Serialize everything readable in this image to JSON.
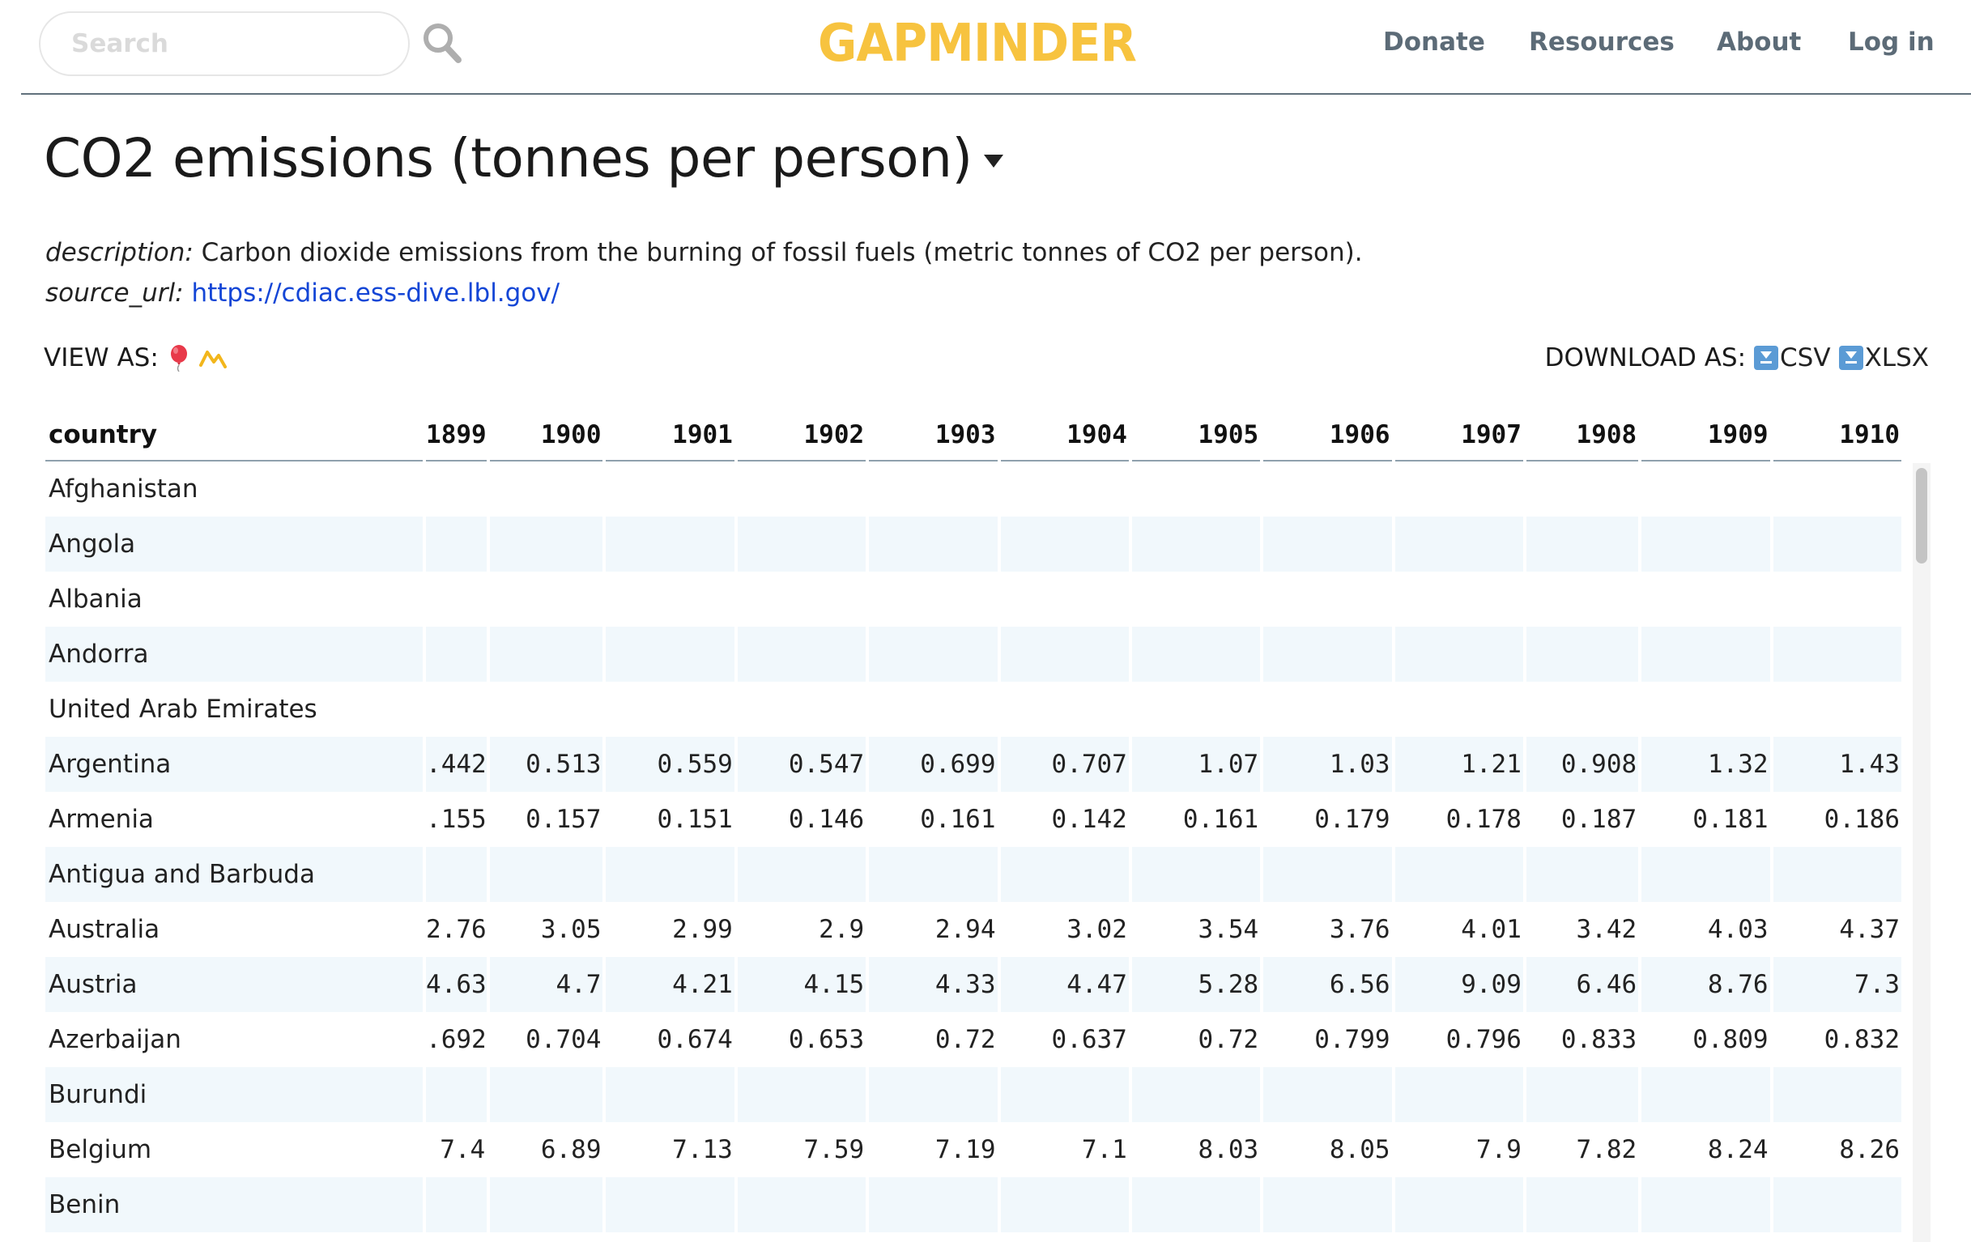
{
  "header": {
    "search_placeholder": "Search",
    "logo": "GAPMINDER",
    "nav": [
      "Donate",
      "Resources",
      "About",
      "Log in"
    ]
  },
  "dataset": {
    "title": "CO2 emissions (tonnes per person)",
    "description_label": "description:",
    "description": "Carbon dioxide emissions from the burning of fossil fuels (metric tonnes of CO2 per person).",
    "source_label": "source_url:",
    "source_url": "https://cdiac.ess-dive.lbl.gov/"
  },
  "view_as": {
    "label": "VIEW AS:",
    "icons": [
      "balloon-icon",
      "line-chart-icon"
    ]
  },
  "download_as": {
    "label": "DOWNLOAD AS:",
    "formats": [
      "CSV",
      "XLSX"
    ]
  },
  "colors": {
    "logo": "#f7c33f",
    "nav": "#5c6b77",
    "link": "#1446d6",
    "row_alt": "#f1f8fc"
  },
  "table": {
    "country_header": "country",
    "years": [
      "1899",
      "1900",
      "1901",
      "1902",
      "1903",
      "1904",
      "1905",
      "1906",
      "1907",
      "1908",
      "1909",
      "1910"
    ],
    "rows": [
      {
        "country": "Afghanistan",
        "values": [
          "",
          "",
          "",
          "",
          "",
          "",
          "",
          "",
          "",
          "",
          "",
          ""
        ]
      },
      {
        "country": "Angola",
        "values": [
          "",
          "",
          "",
          "",
          "",
          "",
          "",
          "",
          "",
          "",
          "",
          ""
        ]
      },
      {
        "country": "Albania",
        "values": [
          "",
          "",
          "",
          "",
          "",
          "",
          "",
          "",
          "",
          "",
          "",
          ""
        ]
      },
      {
        "country": "Andorra",
        "values": [
          "",
          "",
          "",
          "",
          "",
          "",
          "",
          "",
          "",
          "",
          "",
          ""
        ]
      },
      {
        "country": "United Arab Emirates",
        "values": [
          "",
          "",
          "",
          "",
          "",
          "",
          "",
          "",
          "",
          "",
          "",
          ""
        ]
      },
      {
        "country": "Argentina",
        "values": [
          ".442",
          "0.513",
          "0.559",
          "0.547",
          "0.699",
          "0.707",
          "1.07",
          "1.03",
          "1.21",
          "0.908",
          "1.32",
          "1.43"
        ]
      },
      {
        "country": "Armenia",
        "values": [
          ".155",
          "0.157",
          "0.151",
          "0.146",
          "0.161",
          "0.142",
          "0.161",
          "0.179",
          "0.178",
          "0.187",
          "0.181",
          "0.186"
        ]
      },
      {
        "country": "Antigua and Barbuda",
        "values": [
          "",
          "",
          "",
          "",
          "",
          "",
          "",
          "",
          "",
          "",
          "",
          ""
        ]
      },
      {
        "country": "Australia",
        "values": [
          "2.76",
          "3.05",
          "2.99",
          "2.9",
          "2.94",
          "3.02",
          "3.54",
          "3.76",
          "4.01",
          "3.42",
          "4.03",
          "4.37"
        ]
      },
      {
        "country": "Austria",
        "values": [
          "4.63",
          "4.7",
          "4.21",
          "4.15",
          "4.33",
          "4.47",
          "5.28",
          "6.56",
          "9.09",
          "6.46",
          "8.76",
          "7.3"
        ]
      },
      {
        "country": "Azerbaijan",
        "values": [
          ".692",
          "0.704",
          "0.674",
          "0.653",
          "0.72",
          "0.637",
          "0.72",
          "0.799",
          "0.796",
          "0.833",
          "0.809",
          "0.832"
        ]
      },
      {
        "country": "Burundi",
        "values": [
          "",
          "",
          "",
          "",
          "",
          "",
          "",
          "",
          "",
          "",
          "",
          ""
        ]
      },
      {
        "country": "Belgium",
        "values": [
          "7.4",
          "6.89",
          "7.13",
          "7.59",
          "7.19",
          "7.1",
          "8.03",
          "8.05",
          "7.9",
          "7.82",
          "8.24",
          "8.26"
        ]
      },
      {
        "country": "Benin",
        "values": [
          "",
          "",
          "",
          "",
          "",
          "",
          "",
          "",
          "",
          "",
          "",
          ""
        ]
      },
      {
        "country": "",
        "values": [
          "",
          "",
          "",
          "",
          "",
          "",
          "",
          "",
          "",
          "",
          "",
          ""
        ]
      }
    ]
  }
}
